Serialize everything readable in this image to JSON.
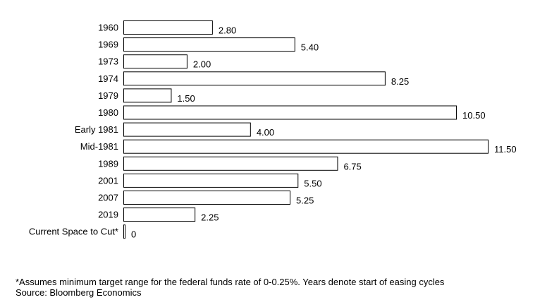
{
  "chart_data": {
    "type": "bar",
    "orientation": "horizontal",
    "categories": [
      "1960",
      "1969",
      "1973",
      "1974",
      "1979",
      "1980",
      "Early 1981",
      "Mid-1981",
      "1989",
      "2001",
      "2007",
      "2019",
      "Current Space to Cut*"
    ],
    "values": [
      2.8,
      5.4,
      2.0,
      8.25,
      1.5,
      10.5,
      4.0,
      11.5,
      6.75,
      5.5,
      5.25,
      2.25,
      0
    ],
    "value_labels": [
      "2.80",
      "5.40",
      "2.00",
      "8.25",
      "1.50",
      "10.50",
      "4.00",
      "11.50",
      "6.75",
      "5.50",
      "5.25",
      "2.25",
      "0"
    ],
    "xlim": [
      0,
      11.5
    ],
    "grid": false,
    "bar_fill": "#ffffff",
    "bar_stroke": "#000000"
  },
  "footnotes": {
    "note": "*Assumes minimum target range for the federal funds rate of 0-0.25%. Years denote start of easing cycles",
    "source": "Source: Bloomberg Economics"
  }
}
